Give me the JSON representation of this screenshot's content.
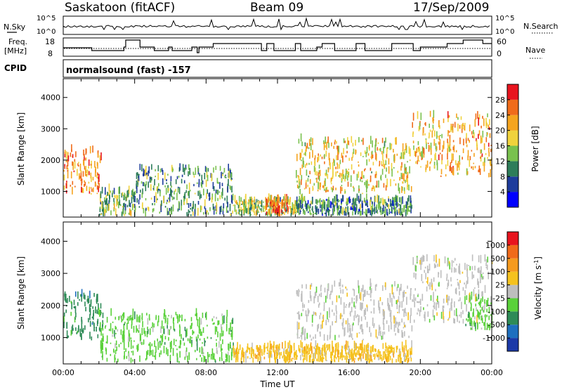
{
  "header": {
    "station": "Saskatoon (fitACF)",
    "beam": "Beam 09",
    "date": "17/Sep/2009"
  },
  "strip_panels": {
    "noise": {
      "left_label": "N.Sky",
      "right_label": "N.Search",
      "left_ticks": [
        "10^5",
        "10^0"
      ],
      "right_ticks": [
        "10^5",
        "10^0"
      ]
    },
    "freq": {
      "left_label_line1": "Freq.",
      "left_label_line2": "[MHz]",
      "right_label": "Nave",
      "left_ticks": [
        "18",
        "8"
      ],
      "right_ticks": [
        "60",
        "0"
      ]
    },
    "cpid": {
      "label": "CPID",
      "text": "normalsound (fast) -157"
    }
  },
  "chart_data": [
    {
      "type": "heatmap",
      "panel": "power",
      "ylabel": "Slant Range [km]",
      "ylim": [
        180,
        4600
      ],
      "xlim_hours": [
        0,
        24
      ],
      "yticks": [
        "1000",
        "2000",
        "3000",
        "4000"
      ],
      "colorbar": {
        "label": "Power [dB]",
        "ticks": [
          "4",
          "8",
          "12",
          "16",
          "20",
          "24",
          "28"
        ],
        "colors": [
          "#0000ff",
          "#1e3c9c",
          "#2e7d5a",
          "#79c14e",
          "#f0d23c",
          "#f5a41e",
          "#f06b1a",
          "#e8141e"
        ]
      },
      "regions": [
        {
          "t0": 0.0,
          "t1": 2.1,
          "r0": 900,
          "r1": 2300,
          "level": 0.78
        },
        {
          "t0": 2.0,
          "t1": 4.0,
          "r0": 200,
          "r1": 1000,
          "level": 0.42
        },
        {
          "t0": 4.0,
          "t1": 9.5,
          "r0": 200,
          "r1": 1700,
          "level": 0.32
        },
        {
          "t0": 9.5,
          "t1": 13.0,
          "r0": 200,
          "r1": 700,
          "level": 0.45
        },
        {
          "t0": 11.3,
          "t1": 12.6,
          "r0": 200,
          "r1": 700,
          "level": 0.88
        },
        {
          "t0": 13.0,
          "t1": 19.5,
          "r0": 200,
          "r1": 700,
          "level": 0.3
        },
        {
          "t0": 13.0,
          "t1": 19.5,
          "r0": 900,
          "r1": 2600,
          "level": 0.6
        },
        {
          "t0": 19.5,
          "t1": 21.0,
          "r0": 1600,
          "r1": 3400,
          "level": 0.66
        },
        {
          "t0": 21.0,
          "t1": 24.0,
          "r0": 1400,
          "r1": 3400,
          "level": 0.7
        }
      ]
    },
    {
      "type": "heatmap",
      "panel": "velocity",
      "ylabel": "Slant Range [km]",
      "xlabel": "Time UT",
      "ylim": [
        180,
        4600
      ],
      "xlim_hours": [
        0,
        24
      ],
      "yticks": [
        "1000",
        "2000",
        "3000",
        "4000"
      ],
      "xticks": [
        "00:00",
        "04:00",
        "08:00",
        "12:00",
        "16:00",
        "20:00",
        "00:00"
      ],
      "colorbar": {
        "label": "Velocity [m s",
        "label_sup": "-1",
        "label_end": "]",
        "ticks": [
          "1000",
          "500",
          "100",
          "25",
          "-25",
          "-100",
          "-500",
          "-1000"
        ],
        "colors": [
          "#1c3aa8",
          "#1e6fbf",
          "#2e8b57",
          "#5ad13a",
          "#bebebe",
          "#f5c21e",
          "#f59a1e",
          "#f06a1a",
          "#e8141e"
        ]
      },
      "regions": [
        {
          "t0": 0.0,
          "t1": 2.1,
          "r0": 900,
          "r1": 2300,
          "vclass": 2
        },
        {
          "t0": 2.0,
          "t1": 9.5,
          "r0": 200,
          "r1": 1700,
          "vclass": 3
        },
        {
          "t0": 9.5,
          "t1": 19.5,
          "r0": 200,
          "r1": 700,
          "vclass": 5
        },
        {
          "t0": 13.0,
          "t1": 19.5,
          "r0": 900,
          "r1": 2600,
          "vclass": 4
        },
        {
          "t0": 19.5,
          "t1": 24.0,
          "r0": 1400,
          "r1": 3400,
          "vclass": 4
        },
        {
          "t0": 22.5,
          "t1": 24.0,
          "r0": 1200,
          "r1": 2200,
          "vclass": 3
        }
      ]
    }
  ]
}
